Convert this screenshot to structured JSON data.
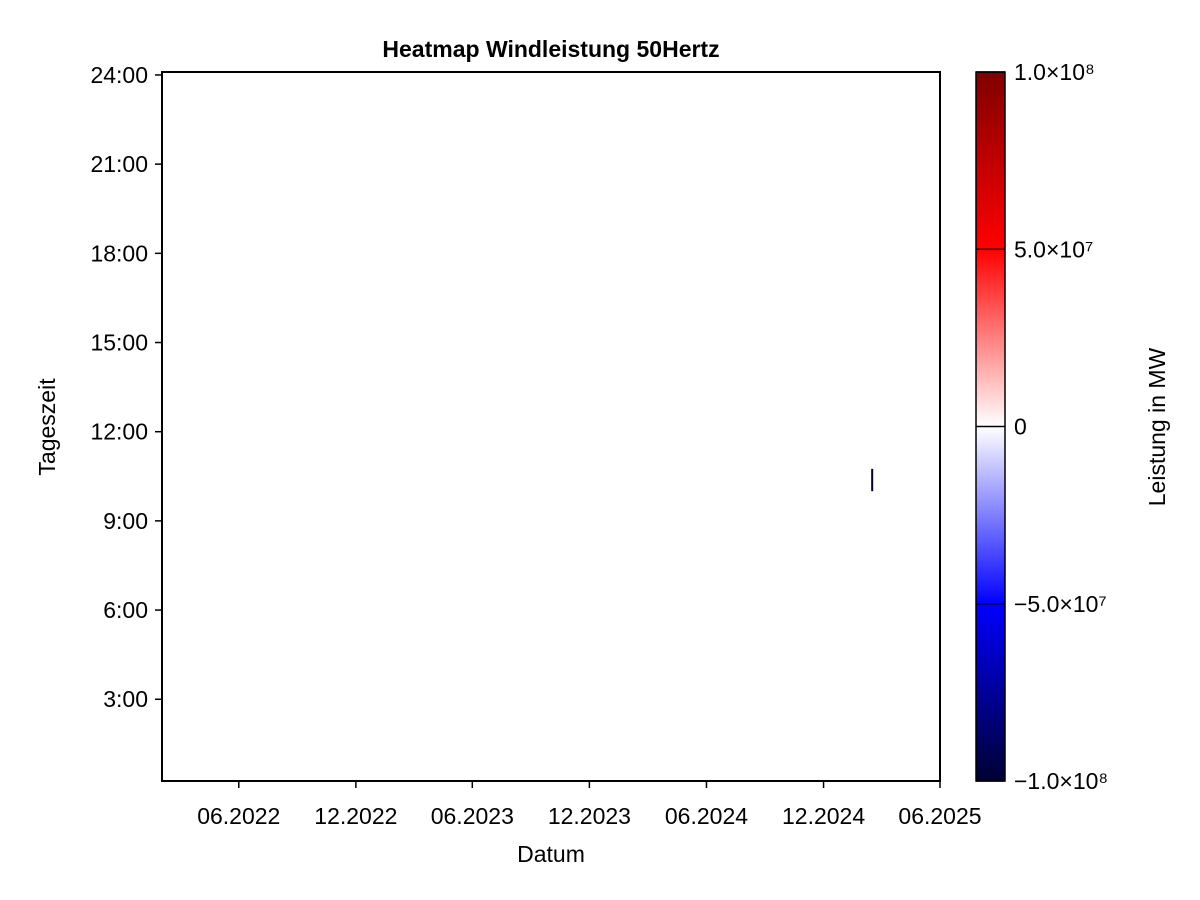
{
  "chart_data": {
    "type": "heatmap",
    "title": "Heatmap Windleistung 50Hertz",
    "xlabel": "Datum",
    "ylabel": "Tageszeit",
    "x_range": [
      "2022-02-01",
      "2025-06-01"
    ],
    "y_range_hours": [
      0.25,
      24.1
    ],
    "x_ticks": [
      {
        "date": "2022-06-01",
        "label": "06.2022"
      },
      {
        "date": "2022-12-01",
        "label": "12.2022"
      },
      {
        "date": "2023-06-01",
        "label": "06.2023"
      },
      {
        "date": "2023-12-01",
        "label": "12.2023"
      },
      {
        "date": "2024-06-01",
        "label": "06.2024"
      },
      {
        "date": "2024-12-01",
        "label": "12.2024"
      },
      {
        "date": "2025-06-01",
        "label": "06.2025"
      }
    ],
    "y_ticks": [
      {
        "hours": 3,
        "label": "3:00"
      },
      {
        "hours": 6,
        "label": "6:00"
      },
      {
        "hours": 9,
        "label": "9:00"
      },
      {
        "hours": 12,
        "label": "12:00"
      },
      {
        "hours": 15,
        "label": "15:00"
      },
      {
        "hours": 18,
        "label": "18:00"
      },
      {
        "hours": 21,
        "label": "21:00"
      },
      {
        "hours": 24,
        "label": "24:00"
      }
    ],
    "cells": [
      {
        "date": "2025-02-15",
        "hour_start": 10.0,
        "hour_end": 10.75,
        "value": -100000000
      }
    ],
    "colorbar": {
      "label": "Leistung in MW",
      "range": [
        -100000000,
        100000000
      ],
      "colormap": "seismic",
      "colors": {
        "low": "#000033",
        "mid_low": "#0000ff",
        "mid": "#ffffff",
        "mid_high": "#ff0000",
        "high": "#800000"
      },
      "ticks": [
        {
          "value": 100000000,
          "label": "1.0×10⁸"
        },
        {
          "value": 50000000,
          "label": "5.0×10⁷"
        },
        {
          "value": 0,
          "label": "0"
        },
        {
          "value": -50000000,
          "label": "−5.0×10⁷"
        },
        {
          "value": -100000000,
          "label": "−1.0×10⁸"
        }
      ]
    }
  }
}
